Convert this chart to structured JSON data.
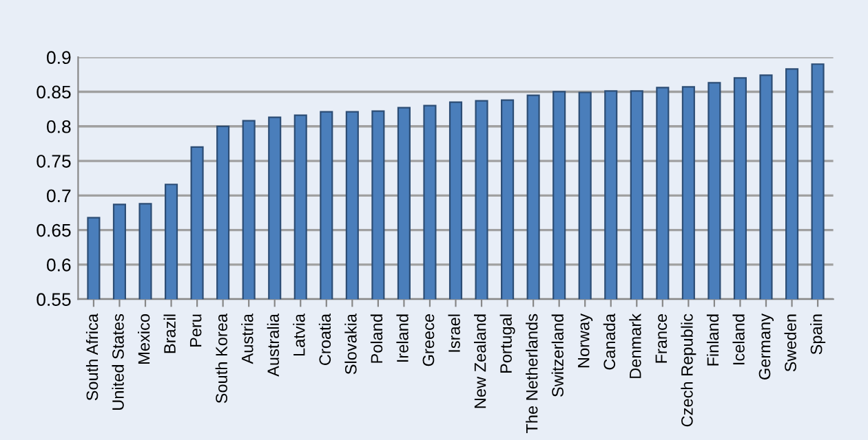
{
  "chart_data": {
    "type": "bar",
    "categories": [
      "South Africa",
      "United States",
      "Mexico",
      "Brazil",
      "Peru",
      "South Korea",
      "Austria",
      "Australia",
      "Latvia",
      "Croatia",
      "Slovakia",
      "Poland",
      "Ireland",
      "Greece",
      "Israel",
      "New Zealand",
      "Portugal",
      "The Netherlands",
      "Switzerland",
      "Norway",
      "Canada",
      "Denmark",
      "France",
      "Czech Republic",
      "Finland",
      "Iceland",
      "Germany",
      "Sweden",
      "Spain"
    ],
    "values": [
      0.668,
      0.687,
      0.688,
      0.716,
      0.77,
      0.8,
      0.808,
      0.813,
      0.816,
      0.821,
      0.821,
      0.822,
      0.827,
      0.83,
      0.835,
      0.837,
      0.838,
      0.845,
      0.85,
      0.849,
      0.851,
      0.851,
      0.856,
      0.857,
      0.863,
      0.87,
      0.874,
      0.883,
      0.89
    ],
    "color": "#4a7ebb",
    "ylim": [
      0.55,
      0.9
    ],
    "yticks": [
      0.55,
      0.6,
      0.65,
      0.7,
      0.75,
      0.8,
      0.85,
      0.9
    ],
    "grid": "y"
  }
}
